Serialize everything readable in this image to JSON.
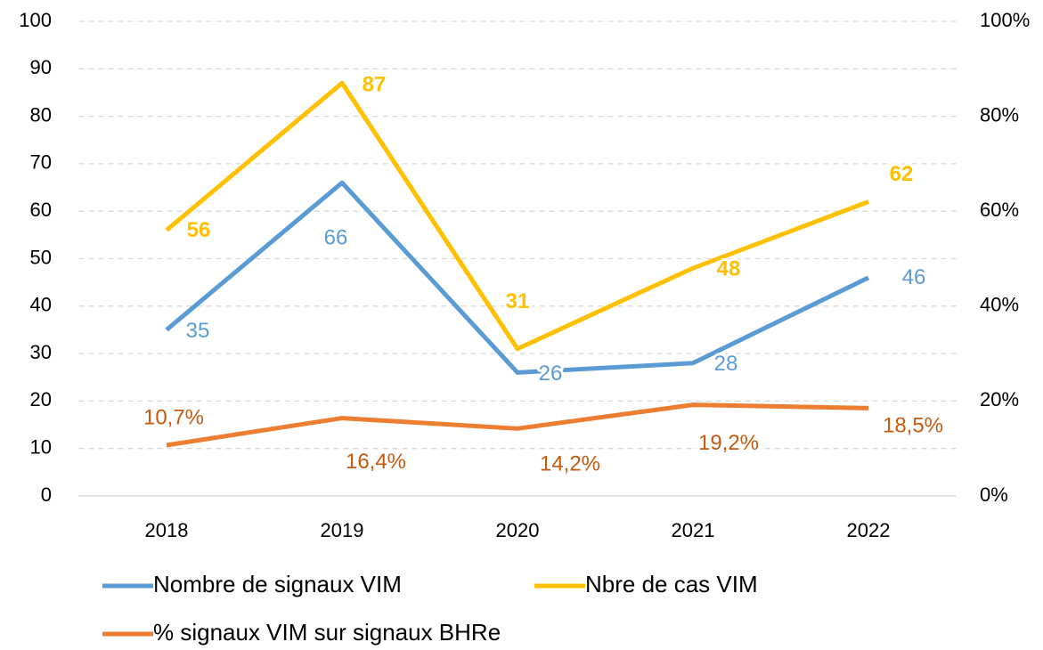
{
  "chart_data": {
    "type": "line",
    "categories": [
      "2018",
      "2019",
      "2020",
      "2021",
      "2022"
    ],
    "series": [
      {
        "name": "Nombre de signaux VIM",
        "color": "#5b9bd5",
        "values": [
          35,
          66,
          26,
          28,
          46
        ]
      },
      {
        "name": "Nbre de cas VIM",
        "color": "#ffc000",
        "values": [
          56,
          87,
          31,
          48,
          62
        ]
      },
      {
        "name": "% signaux VIM sur signaux BHRe",
        "color": "#ed7d31",
        "axis": "y2",
        "values": [
          10.7,
          16.4,
          14.2,
          19.2,
          18.5
        ],
        "value_labels": [
          "10,7%",
          "16,4%",
          "14,2%",
          "19,2%",
          "18,5%"
        ]
      }
    ],
    "ylim": [
      0,
      100
    ],
    "yticks": [
      0,
      10,
      20,
      30,
      40,
      50,
      60,
      70,
      80,
      90,
      100
    ],
    "y2lim": [
      0,
      100
    ],
    "y2ticks": [
      {
        "value": 0,
        "label": "0%"
      },
      {
        "value": 20,
        "label": "20%"
      },
      {
        "value": 40,
        "label": "40%"
      },
      {
        "value": 60,
        "label": "60%"
      },
      {
        "value": 80,
        "label": "80%"
      },
      {
        "value": 100,
        "label": "100%"
      }
    ],
    "grid": true,
    "legend": "bottom"
  }
}
